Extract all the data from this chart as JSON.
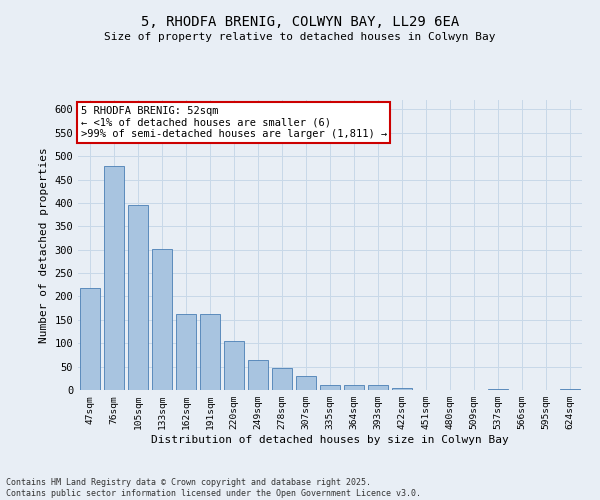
{
  "title_line1": "5, RHODFA BRENIG, COLWYN BAY, LL29 6EA",
  "title_line2": "Size of property relative to detached houses in Colwyn Bay",
  "xlabel": "Distribution of detached houses by size in Colwyn Bay",
  "ylabel": "Number of detached properties",
  "categories": [
    "47sqm",
    "76sqm",
    "105sqm",
    "133sqm",
    "162sqm",
    "191sqm",
    "220sqm",
    "249sqm",
    "278sqm",
    "307sqm",
    "335sqm",
    "364sqm",
    "393sqm",
    "422sqm",
    "451sqm",
    "480sqm",
    "509sqm",
    "537sqm",
    "566sqm",
    "595sqm",
    "624sqm"
  ],
  "values": [
    218,
    478,
    395,
    301,
    163,
    163,
    105,
    65,
    46,
    30,
    10,
    10,
    10,
    5,
    0,
    0,
    0,
    3,
    0,
    0,
    3
  ],
  "bar_color": "#a8c4e0",
  "bar_edge_color": "#4a7fb5",
  "grid_color": "#c8d8e8",
  "bg_color": "#e8eef5",
  "annotation_text": "5 RHODFA BRENIG: 52sqm\n← <1% of detached houses are smaller (6)\n>99% of semi-detached houses are larger (1,811) →",
  "annotation_box_color": "#ffffff",
  "annotation_box_edge": "#cc0000",
  "footer_text": "Contains HM Land Registry data © Crown copyright and database right 2025.\nContains public sector information licensed under the Open Government Licence v3.0.",
  "ylim": [
    0,
    620
  ],
  "yticks": [
    0,
    50,
    100,
    150,
    200,
    250,
    300,
    350,
    400,
    450,
    500,
    550,
    600
  ]
}
